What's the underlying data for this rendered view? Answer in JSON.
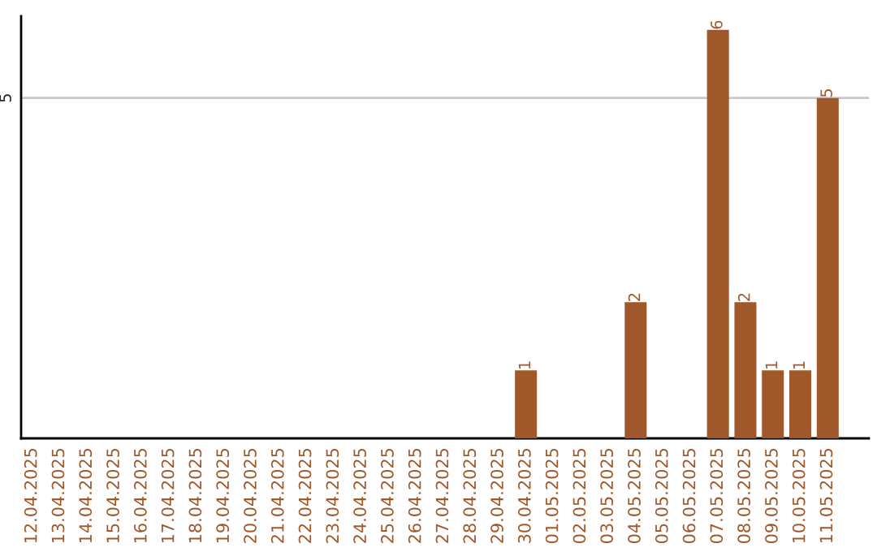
{
  "chart_data": {
    "type": "bar",
    "ylim": [
      0,
      6.2
    ],
    "categories": [
      "12.04.2025",
      "13.04.2025",
      "14.04.2025",
      "15.04.2025",
      "16.04.2025",
      "17.04.2025",
      "18.04.2025",
      "19.04.2025",
      "20.04.2025",
      "21.04.2025",
      "22.04.2025",
      "23.04.2025",
      "24.04.2025",
      "25.04.2025",
      "26.04.2025",
      "27.04.2025",
      "28.04.2025",
      "29.04.2025",
      "30.04.2025",
      "01.05.2025",
      "02.05.2025",
      "03.05.2025",
      "04.05.2025",
      "05.05.2025",
      "06.05.2025",
      "07.05.2025",
      "08.05.2025",
      "09.05.2025",
      "10.05.2025",
      "11.05.2025"
    ],
    "values": [
      null,
      null,
      null,
      null,
      null,
      null,
      null,
      null,
      null,
      null,
      null,
      null,
      null,
      null,
      null,
      null,
      null,
      null,
      1,
      null,
      null,
      null,
      2,
      null,
      null,
      6,
      2,
      1,
      1,
      5
    ],
    "value_labels": [
      null,
      null,
      null,
      null,
      null,
      null,
      null,
      null,
      null,
      null,
      null,
      null,
      null,
      null,
      null,
      null,
      null,
      null,
      "1",
      null,
      null,
      null,
      "2",
      null,
      null,
      "6",
      "2",
      "1",
      "1",
      "5"
    ],
    "color": "#a0572a",
    "ref_lines": [
      {
        "axis": "y",
        "value": 5,
        "label": "5",
        "color": "#c8c8c8"
      }
    ]
  }
}
